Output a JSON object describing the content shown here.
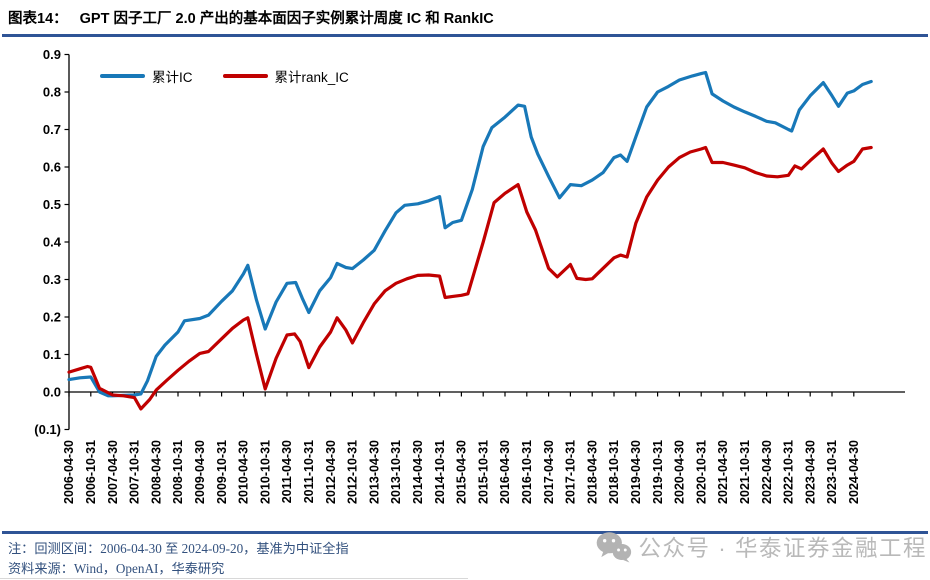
{
  "header": {
    "figure_label": "图表14：",
    "title": "GPT 因子工厂 2.0 产出的基本面因子实例累计周度 IC 和 RankIC"
  },
  "legend": [
    {
      "label": "累计IC",
      "color": "#1878B8"
    },
    {
      "label": "累计rank_IC",
      "color": "#C00000"
    }
  ],
  "colors": {
    "rule_blue": "#2F5496",
    "axis_black": "#000000",
    "footer_text": "#33517E",
    "watermark_gray": "#B9B9B9"
  },
  "footer": {
    "note": "注：回测区间：2006-04-30 至 2024-09-20，基准为中证全指",
    "source": "资料来源：Wind，OpenAI，华泰研究"
  },
  "watermark": {
    "icon": "wechat-icon",
    "text": "公众号 · 华泰证券金融工程"
  },
  "chart_data": {
    "type": "line",
    "title": "GPT 因子工厂 2.0 产出的基本面因子实例累计周度 IC 和 RankIC",
    "xlabel": "",
    "ylabel": "",
    "ylim": [
      -0.1,
      0.9
    ],
    "grid": false,
    "legend_position": "top-left-inside",
    "y_tick_labels": [
      "0.9",
      "0.8",
      "0.7",
      "0.6",
      "0.5",
      "0.4",
      "0.3",
      "0.2",
      "0.1",
      "0.0",
      "(0.1)"
    ],
    "categories": [
      "2006-04-30",
      "2006-10-31",
      "2007-04-30",
      "2007-10-31",
      "2008-04-30",
      "2008-10-31",
      "2009-04-30",
      "2009-10-31",
      "2010-04-30",
      "2010-10-31",
      "2011-04-30",
      "2011-10-31",
      "2012-04-30",
      "2012-10-31",
      "2013-04-30",
      "2013-10-31",
      "2014-04-30",
      "2014-10-31",
      "2015-04-30",
      "2015-10-31",
      "2016-04-30",
      "2016-10-31",
      "2017-04-30",
      "2017-10-31",
      "2018-04-30",
      "2018-10-31",
      "2019-04-30",
      "2019-10-31",
      "2020-04-30",
      "2020-10-31",
      "2021-04-30",
      "2021-10-31",
      "2022-04-30",
      "2022-10-31",
      "2023-04-30",
      "2023-10-31",
      "2024-04-30"
    ],
    "x_unit": "t = half-year tick index since 2006-04-30; t=36 is 2024-04-30, t=36.8 is 2024-09-20 (series end)",
    "series": [
      {
        "name": "累计IC",
        "color": "#1878B8",
        "points": [
          [
            0,
            0.033
          ],
          [
            0.5,
            0.038
          ],
          [
            1,
            0.04
          ],
          [
            1.4,
            0.0
          ],
          [
            1.8,
            -0.01
          ],
          [
            2,
            -0.01
          ],
          [
            2.5,
            -0.009
          ],
          [
            3,
            -0.008
          ],
          [
            3.3,
            -0.005
          ],
          [
            3.6,
            0.03
          ],
          [
            4,
            0.095
          ],
          [
            4.4,
            0.125
          ],
          [
            5,
            0.16
          ],
          [
            5.3,
            0.19
          ],
          [
            6,
            0.196
          ],
          [
            6.4,
            0.205
          ],
          [
            7,
            0.242
          ],
          [
            7.5,
            0.27
          ],
          [
            8,
            0.315
          ],
          [
            8.2,
            0.338
          ],
          [
            8.6,
            0.245
          ],
          [
            9,
            0.168
          ],
          [
            9.5,
            0.24
          ],
          [
            10,
            0.29
          ],
          [
            10.4,
            0.292
          ],
          [
            10.7,
            0.25
          ],
          [
            11,
            0.212
          ],
          [
            11.5,
            0.27
          ],
          [
            12,
            0.305
          ],
          [
            12.3,
            0.343
          ],
          [
            12.7,
            0.332
          ],
          [
            13,
            0.329
          ],
          [
            13.5,
            0.352
          ],
          [
            14,
            0.378
          ],
          [
            14.5,
            0.43
          ],
          [
            15,
            0.478
          ],
          [
            15.4,
            0.498
          ],
          [
            16,
            0.502
          ],
          [
            16.5,
            0.51
          ],
          [
            17,
            0.521
          ],
          [
            17.25,
            0.438
          ],
          [
            17.6,
            0.452
          ],
          [
            18,
            0.458
          ],
          [
            18.5,
            0.54
          ],
          [
            19,
            0.655
          ],
          [
            19.4,
            0.705
          ],
          [
            20,
            0.733
          ],
          [
            20.6,
            0.765
          ],
          [
            20.9,
            0.762
          ],
          [
            21.2,
            0.68
          ],
          [
            21.5,
            0.635
          ],
          [
            22,
            0.575
          ],
          [
            22.5,
            0.518
          ],
          [
            23,
            0.553
          ],
          [
            23.5,
            0.55
          ],
          [
            24,
            0.565
          ],
          [
            24.5,
            0.585
          ],
          [
            25,
            0.625
          ],
          [
            25.3,
            0.632
          ],
          [
            25.6,
            0.615
          ],
          [
            26,
            0.68
          ],
          [
            26.5,
            0.76
          ],
          [
            27,
            0.8
          ],
          [
            27.5,
            0.815
          ],
          [
            28,
            0.832
          ],
          [
            28.6,
            0.843
          ],
          [
            29,
            0.849
          ],
          [
            29.2,
            0.852
          ],
          [
            29.5,
            0.795
          ],
          [
            30,
            0.776
          ],
          [
            30.5,
            0.76
          ],
          [
            31,
            0.747
          ],
          [
            31.5,
            0.735
          ],
          [
            32,
            0.722
          ],
          [
            32.4,
            0.718
          ],
          [
            33,
            0.7
          ],
          [
            33.15,
            0.696
          ],
          [
            33.5,
            0.752
          ],
          [
            34,
            0.79
          ],
          [
            34.6,
            0.825
          ],
          [
            35,
            0.79
          ],
          [
            35.3,
            0.762
          ],
          [
            35.7,
            0.797
          ],
          [
            36,
            0.803
          ],
          [
            36.4,
            0.82
          ],
          [
            36.8,
            0.828
          ]
        ]
      },
      {
        "name": "累计rank_IC",
        "color": "#C00000",
        "points": [
          [
            0,
            0.053
          ],
          [
            0.5,
            0.062
          ],
          [
            0.85,
            0.068
          ],
          [
            1,
            0.066
          ],
          [
            1.4,
            0.01
          ],
          [
            2,
            -0.008
          ],
          [
            2.5,
            -0.01
          ],
          [
            3,
            -0.015
          ],
          [
            3.3,
            -0.045
          ],
          [
            3.7,
            -0.02
          ],
          [
            4,
            0.005
          ],
          [
            4.5,
            0.032
          ],
          [
            5,
            0.058
          ],
          [
            5.5,
            0.082
          ],
          [
            6,
            0.103
          ],
          [
            6.4,
            0.108
          ],
          [
            7,
            0.142
          ],
          [
            7.5,
            0.17
          ],
          [
            8,
            0.192
          ],
          [
            8.2,
            0.198
          ],
          [
            8.6,
            0.1
          ],
          [
            9,
            0.008
          ],
          [
            9.5,
            0.09
          ],
          [
            10,
            0.152
          ],
          [
            10.35,
            0.155
          ],
          [
            10.6,
            0.135
          ],
          [
            11,
            0.065
          ],
          [
            11.5,
            0.12
          ],
          [
            12,
            0.16
          ],
          [
            12.3,
            0.198
          ],
          [
            12.7,
            0.165
          ],
          [
            13,
            0.131
          ],
          [
            13.5,
            0.185
          ],
          [
            14,
            0.235
          ],
          [
            14.5,
            0.27
          ],
          [
            15,
            0.29
          ],
          [
            15.5,
            0.302
          ],
          [
            16,
            0.311
          ],
          [
            16.5,
            0.312
          ],
          [
            17,
            0.309
          ],
          [
            17.25,
            0.252
          ],
          [
            17.6,
            0.255
          ],
          [
            18,
            0.258
          ],
          [
            18.3,
            0.262
          ],
          [
            19,
            0.4
          ],
          [
            19.5,
            0.505
          ],
          [
            20,
            0.53
          ],
          [
            20.6,
            0.553
          ],
          [
            21,
            0.48
          ],
          [
            21.4,
            0.432
          ],
          [
            22,
            0.33
          ],
          [
            22.4,
            0.307
          ],
          [
            23,
            0.34
          ],
          [
            23.3,
            0.303
          ],
          [
            23.7,
            0.3
          ],
          [
            24,
            0.302
          ],
          [
            24.5,
            0.33
          ],
          [
            25,
            0.358
          ],
          [
            25.3,
            0.365
          ],
          [
            25.6,
            0.36
          ],
          [
            26,
            0.45
          ],
          [
            26.5,
            0.52
          ],
          [
            27,
            0.565
          ],
          [
            27.5,
            0.6
          ],
          [
            28,
            0.625
          ],
          [
            28.5,
            0.64
          ],
          [
            29,
            0.648
          ],
          [
            29.2,
            0.652
          ],
          [
            29.5,
            0.612
          ],
          [
            30,
            0.612
          ],
          [
            30.5,
            0.605
          ],
          [
            31,
            0.598
          ],
          [
            31.5,
            0.585
          ],
          [
            32,
            0.576
          ],
          [
            32.5,
            0.574
          ],
          [
            33,
            0.578
          ],
          [
            33.3,
            0.603
          ],
          [
            33.6,
            0.595
          ],
          [
            34,
            0.617
          ],
          [
            34.6,
            0.648
          ],
          [
            35,
            0.61
          ],
          [
            35.3,
            0.588
          ],
          [
            35.7,
            0.605
          ],
          [
            36,
            0.615
          ],
          [
            36.4,
            0.648
          ],
          [
            36.8,
            0.652
          ]
        ]
      }
    ]
  }
}
